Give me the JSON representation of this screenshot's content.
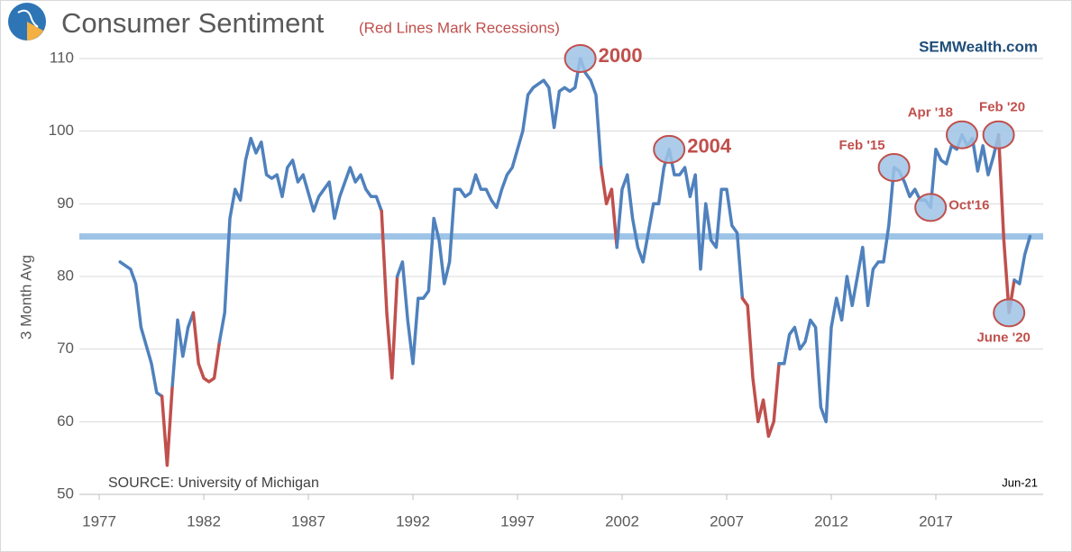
{
  "chart_data": {
    "type": "line",
    "title": "Consumer Sentiment",
    "subtitle": "(Red Lines Mark Recessions)",
    "site": "SEMWealth.com",
    "source": "SOURCE:  University of Michigan",
    "date_note": "Jun-21",
    "y_label": "3 Month Avg",
    "color": "#4f81bd",
    "recession_color": "#c0504d",
    "recessions": [
      [
        1980,
        1980.5
      ],
      [
        1981.5,
        1982.75
      ],
      [
        1990.5,
        1991.25
      ],
      [
        2001,
        2001.75
      ],
      [
        2007.75,
        2009.5
      ],
      [
        2020,
        2020.75
      ]
    ],
    "reference_line": 85.5,
    "reference_color": "#9dc3e6",
    "grid": true,
    "xlim": [
      1976.05,
      2022.13
    ],
    "xticks": [
      1977,
      1982,
      1987,
      1992,
      1997,
      2002,
      2007,
      2012,
      2017
    ],
    "ylim": [
      50,
      110
    ],
    "yticks": [
      50,
      60,
      70,
      80,
      90,
      100,
      110
    ],
    "x": [
      1978,
      1978.25,
      1978.5,
      1978.75,
      1979,
      1979.25,
      1979.5,
      1979.75,
      1980,
      1980.25,
      1980.5,
      1980.75,
      1981,
      1981.25,
      1981.5,
      1981.75,
      1982,
      1982.25,
      1982.5,
      1982.75,
      1983,
      1983.25,
      1983.5,
      1983.75,
      1984,
      1984.25,
      1984.5,
      1984.75,
      1985,
      1985.25,
      1985.5,
      1985.75,
      1986,
      1986.25,
      1986.5,
      1986.75,
      1987,
      1987.25,
      1987.5,
      1987.75,
      1988,
      1988.25,
      1988.5,
      1988.75,
      1989,
      1989.25,
      1989.5,
      1989.75,
      1990,
      1990.25,
      1990.5,
      1990.75,
      1991,
      1991.25,
      1991.5,
      1991.75,
      1992,
      1992.25,
      1992.5,
      1992.75,
      1993,
      1993.25,
      1993.5,
      1993.75,
      1994,
      1994.25,
      1994.5,
      1994.75,
      1995,
      1995.25,
      1995.5,
      1995.75,
      1996,
      1996.25,
      1996.5,
      1996.75,
      1997,
      1997.25,
      1997.5,
      1997.75,
      1998,
      1998.25,
      1998.5,
      1998.75,
      1999,
      1999.25,
      1999.5,
      1999.75,
      2000,
      2000.25,
      2000.5,
      2000.75,
      2001,
      2001.25,
      2001.5,
      2001.75,
      2002,
      2002.25,
      2002.5,
      2002.75,
      2003,
      2003.25,
      2003.5,
      2003.75,
      2004,
      2004.25,
      2004.5,
      2004.75,
      2005,
      2005.25,
      2005.5,
      2005.75,
      2006,
      2006.25,
      2006.5,
      2006.75,
      2007,
      2007.25,
      2007.5,
      2007.75,
      2008,
      2008.25,
      2008.5,
      2008.75,
      2009,
      2009.25,
      2009.5,
      2009.75,
      2010,
      2010.25,
      2010.5,
      2010.75,
      2011,
      2011.25,
      2011.5,
      2011.75,
      2012,
      2012.25,
      2012.5,
      2012.75,
      2013,
      2013.25,
      2013.5,
      2013.75,
      2014,
      2014.25,
      2014.5,
      2014.75,
      2015,
      2015.25,
      2015.5,
      2015.75,
      2016,
      2016.25,
      2016.5,
      2016.75,
      2017,
      2017.25,
      2017.5,
      2017.75,
      2018,
      2018.25,
      2018.5,
      2018.75,
      2019,
      2019.25,
      2019.5,
      2019.75,
      2020,
      2020.25,
      2020.5,
      2020.75,
      2021,
      2021.25,
      2021.5
    ],
    "values": [
      82,
      81.5,
      81,
      79,
      73,
      70.5,
      68,
      64,
      63.5,
      54,
      65,
      74,
      69,
      73,
      75,
      68,
      66,
      65.5,
      66,
      71,
      75,
      88,
      92,
      90.5,
      96,
      99,
      97,
      98.5,
      94,
      93.5,
      94,
      91,
      95,
      96,
      93,
      94,
      91.5,
      89,
      91,
      92,
      93,
      88,
      91,
      93,
      95,
      93,
      94,
      92,
      91,
      91,
      89,
      75,
      66,
      80,
      82,
      74,
      68,
      77,
      77,
      78,
      88,
      85,
      79,
      82,
      92,
      92,
      91,
      91.5,
      94,
      92,
      92,
      90.5,
      89.5,
      92,
      94,
      95,
      97.5,
      100,
      105,
      106,
      106.5,
      107,
      106,
      100.5,
      105.5,
      106,
      105.5,
      106,
      110,
      108,
      107,
      105,
      95,
      90,
      92,
      84,
      92,
      94,
      88,
      84,
      82,
      86,
      90,
      90,
      95,
      97.5,
      94,
      94,
      95,
      91,
      94,
      81,
      90,
      85,
      84,
      92,
      92,
      87,
      86,
      77,
      76,
      66,
      60,
      63,
      58,
      60,
      68,
      68,
      72,
      73,
      70,
      71,
      74,
      73,
      62,
      60,
      73,
      77,
      74,
      80,
      76,
      80,
      84,
      76,
      81,
      82,
      82,
      87,
      95,
      94.5,
      93,
      91,
      92,
      90.5,
      90.5,
      89.5,
      97.5,
      96,
      95.5,
      98,
      97.5,
      99.5,
      98,
      99,
      94.5,
      98,
      94,
      96.5,
      99.5,
      85,
      75,
      79.5,
      79,
      83,
      85.5
    ],
    "annotations": [
      {
        "text": "2000",
        "x": 2000,
        "y": 110,
        "position": "right",
        "size": "large"
      },
      {
        "text": "2004",
        "x": 2004.25,
        "y": 97.5,
        "position": "right",
        "size": "large"
      },
      {
        "text": "Feb '15",
        "x": 2015,
        "y": 95,
        "position": "above-left",
        "size": "small"
      },
      {
        "text": "Oct'16",
        "x": 2016.75,
        "y": 89.5,
        "position": "right",
        "size": "small"
      },
      {
        "text": "Apr '18",
        "x": 2018.25,
        "y": 99.5,
        "position": "above-left",
        "size": "small"
      },
      {
        "text": "Feb '20",
        "x": 2020,
        "y": 99.5,
        "position": "above",
        "size": "small"
      },
      {
        "text": "June '20",
        "x": 2020.5,
        "y": 75,
        "position": "below",
        "size": "small"
      }
    ],
    "annotation_color": "#c0504d",
    "annotation_fill": "#9dc3e6"
  }
}
